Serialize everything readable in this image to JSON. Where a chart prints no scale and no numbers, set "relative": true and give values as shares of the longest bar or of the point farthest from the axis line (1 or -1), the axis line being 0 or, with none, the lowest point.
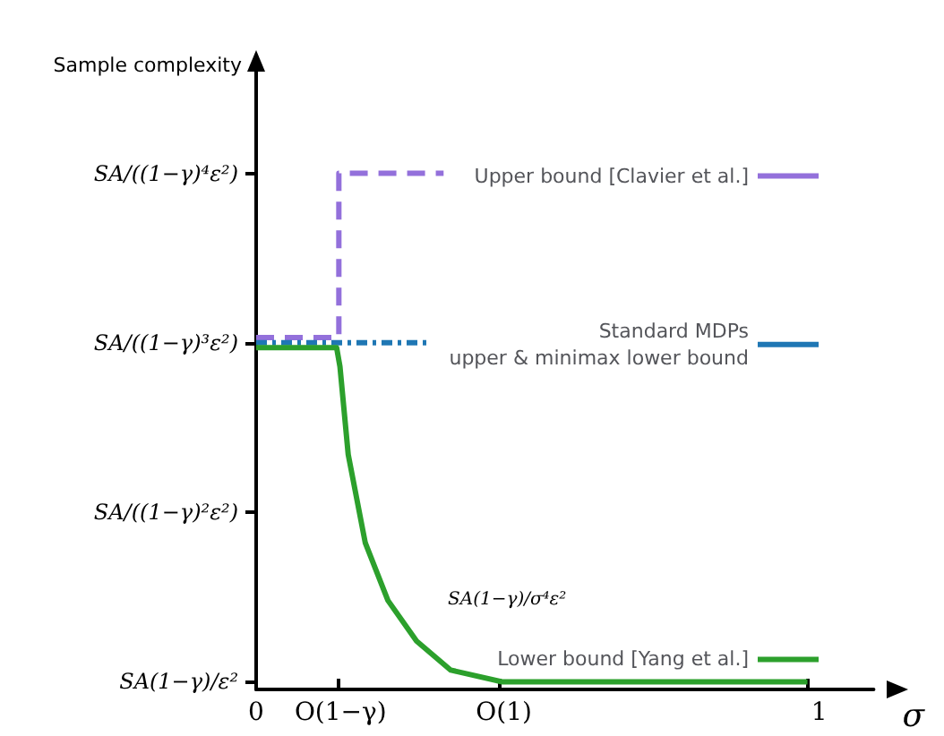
{
  "chart_data": {
    "type": "line",
    "relative": true,
    "xlabel": "σ",
    "ylabel": "Sample complexity",
    "xlim": [
      0,
      1.12
    ],
    "xticks": [
      0,
      {
        "value": 0.15,
        "label": "O(1−γ)"
      },
      {
        "value": 0.44,
        "label": "O(1)"
      },
      1
    ],
    "series": [
      {
        "name": "Upper bound [Clavier et al.]",
        "color": "#9370db",
        "line_style": "dashed",
        "x": [
          0,
          0.15,
          0.15,
          0.34
        ],
        "values": [
          0.677,
          0.677,
          1,
          1
        ]
      },
      {
        "name": "Standard MDPs\nupper & minimax lower bound",
        "color": "#1f77b4",
        "line_style": "dotted",
        "x": [
          0,
          0.31
        ],
        "values": [
          0.667,
          0.667
        ]
      },
      {
        "name": "Lower bound [Yang et al.]",
        "color": "#2ca02c",
        "line_style": "solid",
        "x": [
          0,
          0.146,
          0.152,
          0.167,
          0.198,
          0.239,
          0.291,
          0.353,
          0.446,
          1
        ],
        "values": [
          0.657,
          0.657,
          0.62,
          0.447,
          0.273,
          0.16,
          0.08,
          0.023,
          0,
          0
        ]
      }
    ],
    "annotations": [
      "SA(1−γ)/ε²",
      "SA/((1−γ)²ε²)",
      "SA/((1−γ)³ε²)",
      "SA/((1−γ)⁴ε²)",
      "SA(1−γ)/σ⁴ε²"
    ],
    "legend": "right",
    "marker": "none",
    "grid": false
  }
}
